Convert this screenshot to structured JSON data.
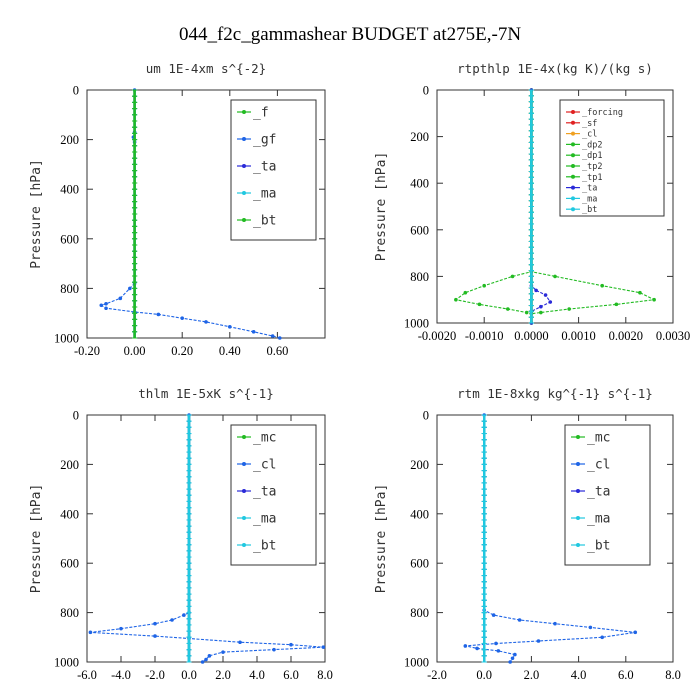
{
  "figure_title": "044_f2c_gammashear  BUDGET at275E,-7N",
  "colors": {
    "green": "#22bb22",
    "blue": "#1e64e6",
    "darkblue": "#2a2ad8",
    "cyan": "#20c8e0",
    "red": "#e02020",
    "orange": "#f0a020",
    "frame": "#333333"
  },
  "chart_data": [
    {
      "type": "line",
      "title": "um  1E-4xm s^{-2}",
      "ylabel": "Pressure [hPa]",
      "xlim": [
        -0.2,
        0.8
      ],
      "ylim": [
        1000,
        0
      ],
      "xticks": [
        -0.2,
        0.0,
        0.2,
        0.4,
        0.6
      ],
      "xtick_labels": [
        "-0.20",
        "0.00",
        "0.20",
        "0.40",
        "0.60"
      ],
      "yticks": [
        0,
        200,
        400,
        600,
        800,
        1000
      ],
      "ytick_labels": [
        "0",
        "200",
        "400",
        "600",
        "800",
        "1000"
      ],
      "legend": {
        "position": "top-right",
        "entries": [
          "_f",
          "_gf",
          "_ta",
          "_ma",
          "_bt"
        ]
      },
      "series": [
        {
          "name": "_f",
          "color": "green",
          "points": [
            [
              0,
              0
            ],
            [
              0,
              1000
            ]
          ]
        },
        {
          "name": "_gf",
          "color": "blue",
          "points": [
            [
              0,
              0
            ],
            [
              0,
              170
            ],
            [
              -0.005,
              190
            ],
            [
              0,
              210
            ],
            [
              0,
              780
            ],
            [
              -0.02,
              800
            ],
            [
              -0.06,
              840
            ],
            [
              -0.12,
              862
            ],
            [
              -0.14,
              868
            ],
            [
              -0.12,
              880
            ],
            [
              0,
              895
            ],
            [
              0.1,
              905
            ],
            [
              0.2,
              920
            ],
            [
              0.3,
              935
            ],
            [
              0.4,
              955
            ],
            [
              0.5,
              975
            ],
            [
              0.58,
              992
            ],
            [
              0.61,
              1000
            ]
          ]
        },
        {
          "name": "_ta",
          "color": "darkblue",
          "points": [
            [
              0,
              0
            ],
            [
              0,
              1000
            ]
          ]
        },
        {
          "name": "_ma",
          "color": "cyan",
          "points": [
            [
              0,
              0
            ],
            [
              0,
              1000
            ]
          ]
        },
        {
          "name": "_bt",
          "color": "green",
          "points": [
            [
              0,
              0
            ],
            [
              0,
              1000
            ]
          ]
        }
      ]
    },
    {
      "type": "line",
      "title": "rtpthlp  1E-4x(kg K)/(kg s)",
      "ylabel": "Pressure [hPa]",
      "xlim": [
        -0.002,
        0.003
      ],
      "ylim": [
        1000,
        0
      ],
      "xticks": [
        -0.002,
        -0.001,
        0.0,
        0.001,
        0.002,
        0.003
      ],
      "xtick_labels": [
        "-0.0020",
        "-0.0010",
        "0.0000",
        "0.0010",
        "0.0020",
        "0.0030"
      ],
      "yticks": [
        0,
        200,
        400,
        600,
        800,
        1000
      ],
      "ytick_labels": [
        "0",
        "200",
        "400",
        "600",
        "800",
        "1000"
      ],
      "legend": {
        "position": "top-right",
        "entries": [
          "_forcing",
          "_sf",
          "_cl",
          "_dp2",
          "_dp1",
          "_tp2",
          "_tp1",
          "_ta",
          "_ma",
          "_bt"
        ]
      },
      "series": [
        {
          "name": "_forcing",
          "color": "red",
          "points": [
            [
              0,
              0
            ],
            [
              0,
              1000
            ]
          ]
        },
        {
          "name": "_sf",
          "color": "red",
          "points": [
            [
              0,
              0
            ],
            [
              0,
              1000
            ]
          ]
        },
        {
          "name": "_cl",
          "color": "orange",
          "points": [
            [
              0,
              0
            ],
            [
              0,
              1000
            ]
          ]
        },
        {
          "name": "_dp2",
          "color": "green",
          "points": [
            [
              0,
              0
            ],
            [
              0,
              1000
            ]
          ]
        },
        {
          "name": "_dp1",
          "color": "green",
          "points": [
            [
              0,
              0
            ],
            [
              0,
              1000
            ]
          ]
        },
        {
          "name": "_tp2",
          "color": "green",
          "points": [
            [
              0,
              0
            ],
            [
              0,
              780
            ],
            [
              0.0005,
              800
            ],
            [
              0.0015,
              840
            ],
            [
              0.0023,
              870
            ],
            [
              0.0026,
              900
            ],
            [
              0.0018,
              920
            ],
            [
              0.0008,
              940
            ],
            [
              0.0002,
              955
            ],
            [
              0,
              960
            ],
            [
              0,
              1000
            ]
          ]
        },
        {
          "name": "_tp1",
          "color": "green",
          "points": [
            [
              0,
              0
            ],
            [
              0,
              780
            ],
            [
              -0.0004,
              800
            ],
            [
              -0.001,
              840
            ],
            [
              -0.0014,
              870
            ],
            [
              -0.0016,
              900
            ],
            [
              -0.0011,
              920
            ],
            [
              -0.0005,
              940
            ],
            [
              -0.0001,
              955
            ],
            [
              0,
              960
            ],
            [
              0,
              1000
            ]
          ]
        },
        {
          "name": "_ta",
          "color": "darkblue",
          "points": [
            [
              0,
              0
            ],
            [
              0,
              840
            ],
            [
              0.0001,
              860
            ],
            [
              0.0003,
              880
            ],
            [
              0.0004,
              910
            ],
            [
              0.0002,
              930
            ],
            [
              0,
              950
            ],
            [
              0,
              1000
            ]
          ]
        },
        {
          "name": "_ma",
          "color": "cyan",
          "points": [
            [
              0,
              0
            ],
            [
              0,
              1000
            ]
          ]
        },
        {
          "name": "_bt",
          "color": "cyan",
          "points": [
            [
              0,
              0
            ],
            [
              0,
              1000
            ]
          ]
        }
      ]
    },
    {
      "type": "line",
      "title": "thlm  1E-5xK s^{-1}",
      "ylabel": "Pressure [hPa]",
      "xlim": [
        -6.0,
        8.0
      ],
      "ylim": [
        1000,
        0
      ],
      "xticks": [
        -6,
        -4,
        -2,
        0,
        2,
        4,
        6,
        8
      ],
      "xtick_labels": [
        "-6.0",
        "-4.0",
        "-2.0",
        "0.0",
        "2.0",
        "4.0",
        "6.0",
        "8.0"
      ],
      "yticks": [
        0,
        200,
        400,
        600,
        800,
        1000
      ],
      "ytick_labels": [
        "0",
        "200",
        "400",
        "600",
        "800",
        "1000"
      ],
      "legend": {
        "position": "top-right",
        "entries": [
          "_mc",
          "_cl",
          "_ta",
          "_ma",
          "_bt"
        ]
      },
      "series": [
        {
          "name": "_mc",
          "color": "green",
          "points": [
            [
              0,
              0
            ],
            [
              0,
              1000
            ]
          ]
        },
        {
          "name": "_cl",
          "color": "blue",
          "points": [
            [
              0,
              0
            ],
            [
              0,
              800
            ],
            [
              -0.3,
              810
            ],
            [
              -1,
              830
            ],
            [
              -2,
              845
            ],
            [
              -4,
              865
            ],
            [
              -5.8,
              880
            ],
            [
              -2,
              895
            ],
            [
              0,
              905
            ],
            [
              3,
              920
            ],
            [
              6,
              930
            ],
            [
              7.9,
              940
            ],
            [
              5,
              950
            ],
            [
              2,
              960
            ],
            [
              1.2,
              975
            ],
            [
              1,
              990
            ],
            [
              0.8,
              1000
            ]
          ]
        },
        {
          "name": "_ta",
          "color": "darkblue",
          "points": [
            [
              0,
              0
            ],
            [
              0,
              1000
            ]
          ]
        },
        {
          "name": "_ma",
          "color": "cyan",
          "points": [
            [
              0,
              0
            ],
            [
              0,
              1000
            ]
          ]
        },
        {
          "name": "_bt",
          "color": "cyan",
          "points": [
            [
              0,
              0
            ],
            [
              0,
              1000
            ]
          ]
        }
      ]
    },
    {
      "type": "line",
      "title": "rtm  1E-8xkg kg^{-1} s^{-1}",
      "ylabel": "Pressure [hPa]",
      "xlim": [
        -2.0,
        8.0
      ],
      "ylim": [
        1000,
        0
      ],
      "xticks": [
        -2,
        0,
        2,
        4,
        6,
        8
      ],
      "xtick_labels": [
        "-2.0",
        "0.0",
        "2.0",
        "4.0",
        "6.0",
        "8.0"
      ],
      "yticks": [
        0,
        200,
        400,
        600,
        800,
        1000
      ],
      "ytick_labels": [
        "0",
        "200",
        "400",
        "600",
        "800",
        "1000"
      ],
      "legend": {
        "position": "top-right",
        "entries": [
          "_mc",
          "_cl",
          "_ta",
          "_ma",
          "_bt"
        ]
      },
      "series": [
        {
          "name": "_mc",
          "color": "green",
          "points": [
            [
              0,
              0
            ],
            [
              0,
              1000
            ]
          ]
        },
        {
          "name": "_cl",
          "color": "blue",
          "points": [
            [
              0,
              0
            ],
            [
              0,
              790
            ],
            [
              0.4,
              810
            ],
            [
              1.5,
              830
            ],
            [
              3,
              845
            ],
            [
              4.5,
              860
            ],
            [
              6.4,
              880
            ],
            [
              5,
              900
            ],
            [
              2.3,
              915
            ],
            [
              0.5,
              925
            ],
            [
              -0.8,
              935
            ],
            [
              -0.3,
              945
            ],
            [
              0.6,
              955
            ],
            [
              1.3,
              970
            ],
            [
              1.2,
              985
            ],
            [
              1.1,
              1000
            ]
          ]
        },
        {
          "name": "_ta",
          "color": "darkblue",
          "points": [
            [
              0,
              0
            ],
            [
              0,
              1000
            ]
          ]
        },
        {
          "name": "_ma",
          "color": "cyan",
          "points": [
            [
              0,
              0
            ],
            [
              0,
              1000
            ]
          ]
        },
        {
          "name": "_bt",
          "color": "cyan",
          "points": [
            [
              0,
              0
            ],
            [
              0,
              1000
            ]
          ]
        }
      ]
    }
  ]
}
